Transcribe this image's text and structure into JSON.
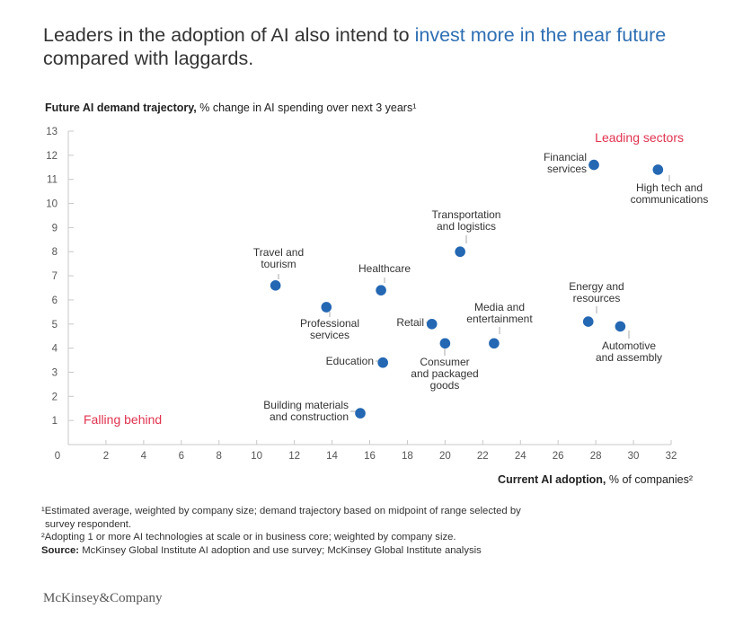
{
  "title": {
    "part1": "Leaders in the adoption of AI also intend to ",
    "highlight": "invest more in the near future",
    "part2": " compared with laggards."
  },
  "y_axis_title": {
    "bold": "Future AI demand trajectory,",
    "rest": " % change in AI spending over next 3 years¹"
  },
  "x_axis_title": {
    "bold": "Current AI adoption,",
    "rest": " % of companies²"
  },
  "colors": {
    "point": "#2467b3",
    "highlight_text": "#2f6fb3",
    "region_label": "#e0334f",
    "axis": "#c8c8c8",
    "tick_label": "#555555"
  },
  "chart_data": {
    "type": "scatter",
    "xlim": [
      0,
      32
    ],
    "ylim": [
      0,
      13
    ],
    "x_ticks": [
      0,
      2,
      4,
      6,
      8,
      10,
      12,
      14,
      16,
      18,
      20,
      22,
      24,
      26,
      28,
      30,
      32
    ],
    "y_ticks": [
      1,
      2,
      3,
      4,
      5,
      6,
      7,
      8,
      9,
      10,
      11,
      12,
      13
    ],
    "grid": false,
    "region_labels": [
      {
        "text": "Leading sectors",
        "position": "top-right"
      },
      {
        "text": "Falling behind",
        "position": "bottom-left"
      }
    ],
    "points": [
      {
        "label": [
          "Travel and",
          "tourism"
        ],
        "x": 11.0,
        "y": 6.6
      },
      {
        "label": [
          "Professional",
          "services"
        ],
        "x": 13.7,
        "y": 5.7
      },
      {
        "label": [
          "Healthcare"
        ],
        "x": 16.6,
        "y": 6.4
      },
      {
        "label": [
          "Education"
        ],
        "x": 16.7,
        "y": 3.4
      },
      {
        "label": [
          "Building materials",
          "and construction"
        ],
        "x": 15.5,
        "y": 1.3
      },
      {
        "label": [
          "Retail"
        ],
        "x": 19.3,
        "y": 5.0
      },
      {
        "label": [
          "Consumer",
          "and packaged",
          "goods"
        ],
        "x": 20.0,
        "y": 4.2
      },
      {
        "label": [
          "Transportation",
          "and logistics"
        ],
        "x": 20.8,
        "y": 8.0
      },
      {
        "label": [
          "Media and",
          "entertainment"
        ],
        "x": 22.6,
        "y": 4.2
      },
      {
        "label": [
          "Energy and",
          "resources"
        ],
        "x": 27.6,
        "y": 5.1
      },
      {
        "label": [
          "Automotive",
          "and assembly"
        ],
        "x": 29.3,
        "y": 4.9
      },
      {
        "label": [
          "Financial",
          "services"
        ],
        "x": 27.9,
        "y": 11.6
      },
      {
        "label": [
          "High tech and",
          "communications"
        ],
        "x": 31.3,
        "y": 11.4
      }
    ]
  },
  "footnotes": {
    "note1_line1": "¹Estimated average, weighted by company size; demand trajectory based on midpoint of range selected by",
    "note1_line2": "survey respondent.",
    "note2": "²Adopting 1 or more AI technologies at scale or in business core; weighted by company size.",
    "source_label": "Source:",
    "source_text": " McKinsey Global Institute AI adoption and use survey; McKinsey Global Institute analysis"
  },
  "logo": "McKinsey&Company"
}
